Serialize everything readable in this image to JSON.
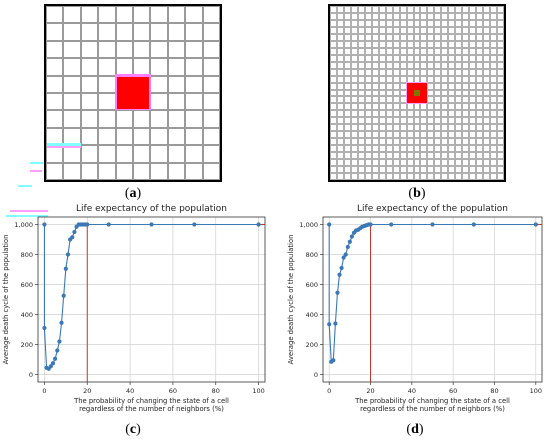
{
  "panels": {
    "a": {
      "caption_open": "(",
      "letter": "a",
      "caption_close": ")",
      "grid_n": 10,
      "red_cell": [
        4,
        4
      ],
      "red_color": "#ff0000",
      "highlight_color": "#ff7fff"
    },
    "b": {
      "caption_open": "(",
      "letter": "b",
      "caption_close": ")",
      "grid_n": 25,
      "red_cell": [
        11,
        11
      ],
      "red_color": "#ff0000",
      "center_color": "#7a7a00"
    },
    "c": {
      "caption_open": "(",
      "letter": "c",
      "caption_close": ")"
    },
    "d": {
      "caption_open": "(",
      "letter": "d",
      "caption_close": ")"
    }
  },
  "chart_data": [
    {
      "type": "line",
      "title": "Life expectancy of the population",
      "xlabel_line1": "The probability of changing the state of a cell",
      "xlabel_line2": "regardless of the number of neighbors (%)",
      "ylabel": "Average death cycle of the population",
      "xlim": [
        -3,
        103
      ],
      "ylim": [
        -50,
        1050
      ],
      "xticks": [
        "0",
        "20",
        "40",
        "60",
        "80",
        "100"
      ],
      "yticks": [
        "0",
        "200",
        "400",
        "600",
        "800",
        "1,000"
      ],
      "grid": true,
      "vline_x": 20,
      "hline_y": 1000,
      "ref_color": "#c0392b",
      "series": [
        {
          "color": "#3a78b6",
          "x": [
            0,
            0,
            1,
            2,
            3,
            4,
            5,
            6,
            7,
            8,
            9,
            10,
            11,
            12,
            13,
            14,
            15,
            16,
            17,
            18,
            19,
            20,
            30,
            50,
            70,
            100
          ],
          "y": [
            1000,
            310,
            45,
            38,
            55,
            75,
            105,
            160,
            220,
            345,
            525,
            705,
            800,
            900,
            915,
            950,
            985,
            1000,
            1000,
            1000,
            1000,
            1000,
            1000,
            1000,
            1000,
            1000
          ]
        }
      ]
    },
    {
      "type": "line",
      "title": "Life expectancy of the population",
      "xlabel_line1": "The probability of changing the state of a cell",
      "xlabel_line2": "regardless of the number of neighbors (%)",
      "ylabel": "Average death cycle of the population",
      "xlim": [
        -3,
        103
      ],
      "ylim": [
        -50,
        1050
      ],
      "xticks": [
        "0",
        "20",
        "40",
        "60",
        "80",
        "100"
      ],
      "yticks": [
        "0",
        "200",
        "400",
        "600",
        "800",
        "1,000"
      ],
      "grid": true,
      "vline_x": 20,
      "hline_y": 1000,
      "ref_color": "#c0392b",
      "series": [
        {
          "color": "#3a78b6",
          "x": [
            0,
            0,
            1,
            2,
            3,
            4,
            5,
            6,
            7,
            8,
            9,
            10,
            11,
            12,
            13,
            14,
            15,
            16,
            17,
            18,
            19,
            20,
            30,
            50,
            70,
            100
          ],
          "y": [
            1000,
            335,
            85,
            95,
            340,
            545,
            665,
            710,
            780,
            800,
            850,
            885,
            920,
            945,
            960,
            965,
            975,
            985,
            990,
            995,
            1000,
            1000,
            1000,
            1000,
            1000,
            1000
          ]
        }
      ]
    }
  ]
}
